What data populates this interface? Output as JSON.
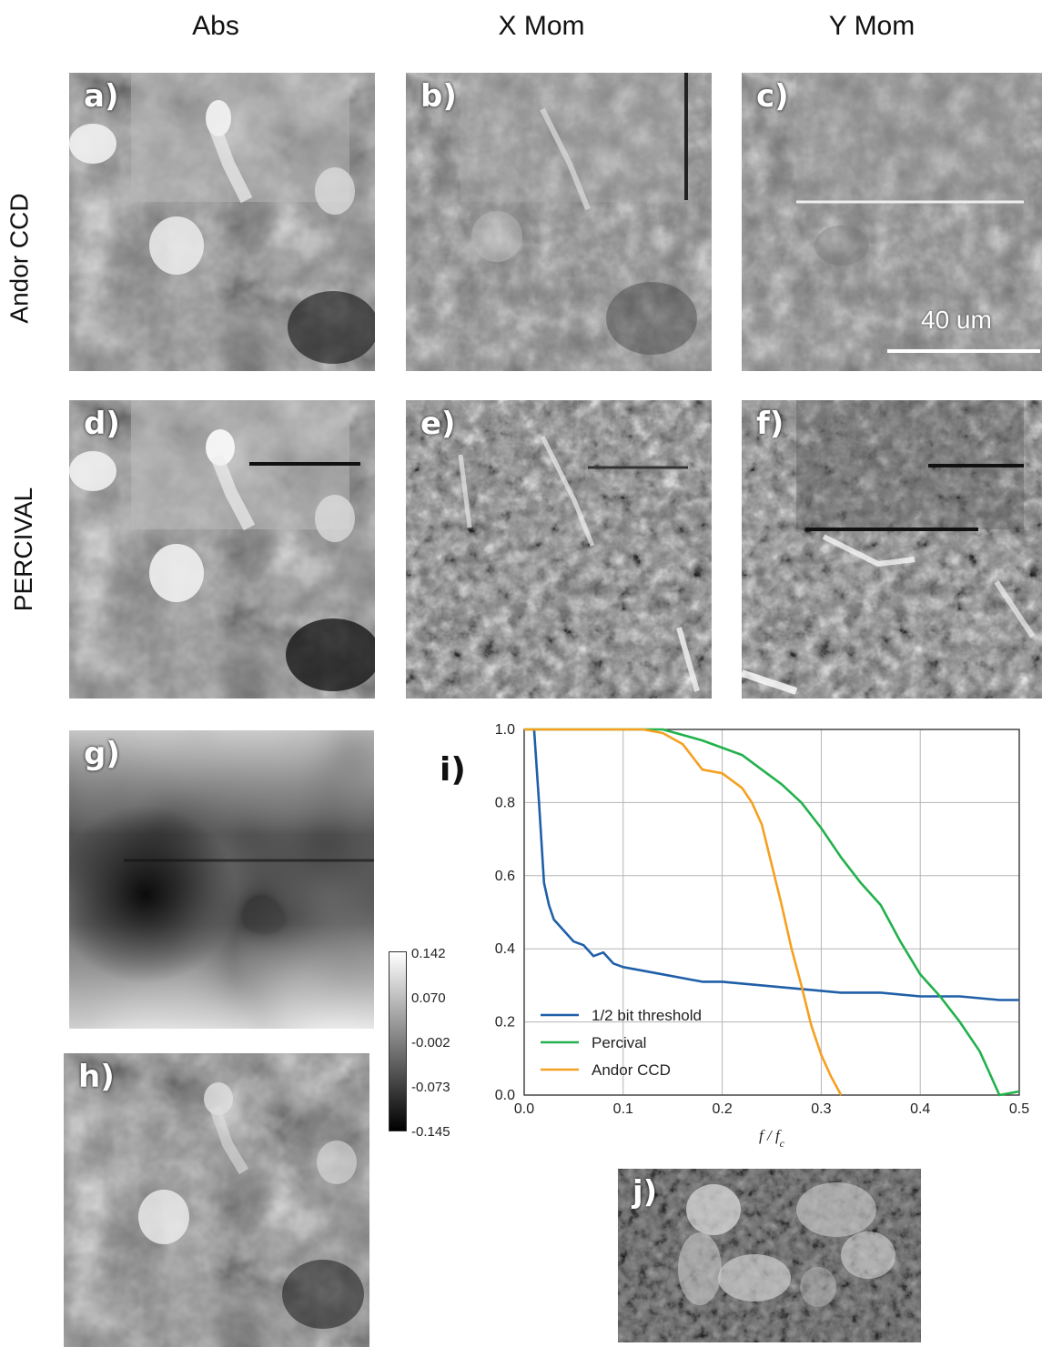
{
  "columns": [
    "Abs",
    "X Mom",
    "Y Mom"
  ],
  "rows": [
    "Andor CCD",
    "PERCIVAL"
  ],
  "panels": {
    "a": "a)",
    "b": "b)",
    "c": "c)",
    "d": "d)",
    "e": "e)",
    "f": "f)",
    "g": "g)",
    "h": "h)",
    "i": "i)",
    "j": "j)"
  },
  "scalebar_label": "40 um",
  "colorbar": {
    "ticks": [
      "0.142",
      "0.070",
      "-0.002",
      "-0.073",
      "-0.145"
    ]
  },
  "colors": {
    "threshold": "#1f5fa8",
    "percival": "#22b14c",
    "andor": "#f5a020"
  },
  "chart_data": {
    "type": "line",
    "xlabel": "f / f_c",
    "ylabel": "",
    "xlim": [
      0.0,
      0.5
    ],
    "ylim": [
      0.0,
      1.0
    ],
    "xticks": [
      "0.0",
      "0.1",
      "0.2",
      "0.3",
      "0.4",
      "0.5"
    ],
    "yticks": [
      "0.0",
      "0.2",
      "0.4",
      "0.6",
      "0.8",
      "1.0"
    ],
    "grid": true,
    "legend_position": "bottom-left",
    "series": [
      {
        "name": "1/2 bit threshold",
        "color": "#1f5fa8",
        "x": [
          0.01,
          0.015,
          0.02,
          0.025,
          0.03,
          0.04,
          0.05,
          0.06,
          0.07,
          0.08,
          0.09,
          0.1,
          0.12,
          0.14,
          0.16,
          0.18,
          0.2,
          0.24,
          0.28,
          0.32,
          0.36,
          0.4,
          0.44,
          0.48,
          0.5
        ],
        "y": [
          1.0,
          0.8,
          0.58,
          0.52,
          0.48,
          0.45,
          0.42,
          0.41,
          0.38,
          0.39,
          0.36,
          0.35,
          0.34,
          0.33,
          0.32,
          0.31,
          0.31,
          0.3,
          0.29,
          0.28,
          0.28,
          0.27,
          0.27,
          0.26,
          0.26
        ]
      },
      {
        "name": "Percival",
        "color": "#22b14c",
        "x": [
          0.0,
          0.1,
          0.14,
          0.18,
          0.2,
          0.22,
          0.24,
          0.26,
          0.28,
          0.3,
          0.32,
          0.34,
          0.36,
          0.38,
          0.4,
          0.42,
          0.44,
          0.46,
          0.47,
          0.48,
          0.5
        ],
        "y": [
          1.0,
          1.0,
          1.0,
          0.97,
          0.95,
          0.93,
          0.89,
          0.85,
          0.8,
          0.73,
          0.65,
          0.58,
          0.52,
          0.42,
          0.33,
          0.27,
          0.2,
          0.12,
          0.06,
          0.0,
          0.01
        ]
      },
      {
        "name": "Andor CCD",
        "color": "#f5a020",
        "x": [
          0.0,
          0.12,
          0.14,
          0.16,
          0.18,
          0.2,
          0.22,
          0.23,
          0.24,
          0.25,
          0.26,
          0.27,
          0.28,
          0.29,
          0.3,
          0.31,
          0.32
        ],
        "y": [
          1.0,
          1.0,
          0.99,
          0.96,
          0.89,
          0.88,
          0.84,
          0.8,
          0.74,
          0.63,
          0.52,
          0.4,
          0.3,
          0.19,
          0.11,
          0.05,
          0.0
        ]
      }
    ]
  }
}
